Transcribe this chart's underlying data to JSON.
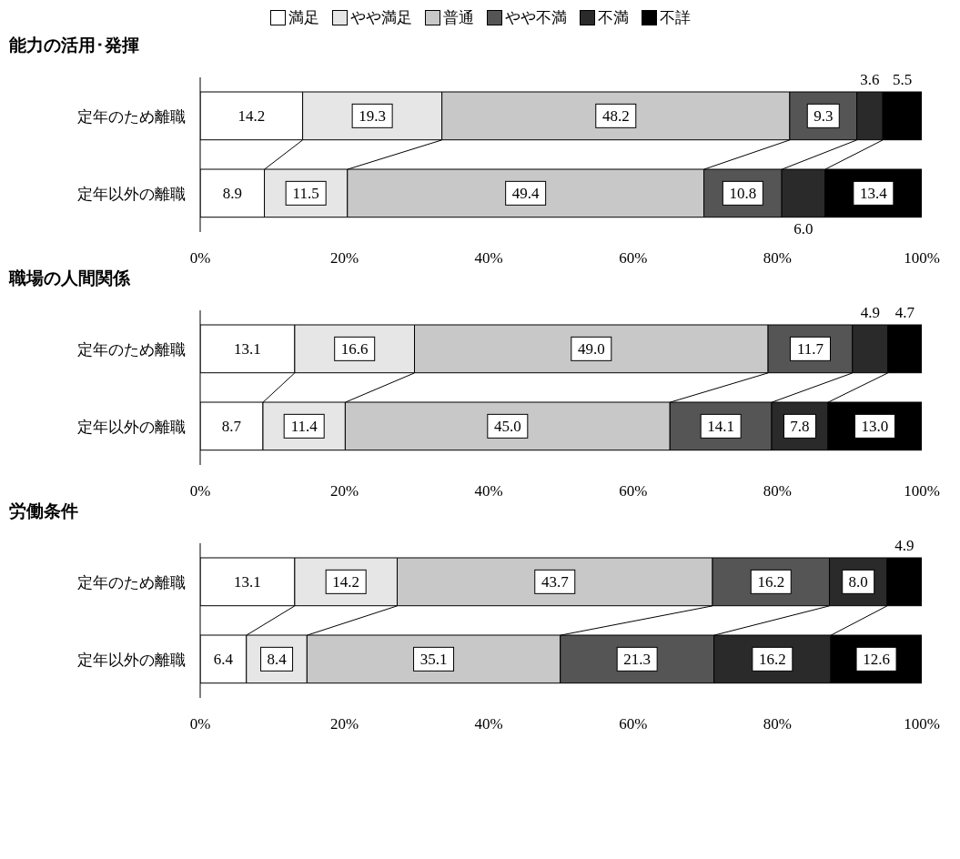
{
  "chart_data": [
    {
      "type": "bar",
      "orientation": "horizontal",
      "stacked": true,
      "title": "能力の活用･発揮",
      "legend": "top",
      "categories": [
        "定年のため離職",
        "定年以外の離職"
      ],
      "xlim": [
        0,
        100
      ],
      "xticks": [
        {
          "value": 0,
          "label": "0%"
        },
        {
          "value": 20,
          "label": "20%"
        },
        {
          "value": 40,
          "label": "40%"
        },
        {
          "value": 60,
          "label": "60%"
        },
        {
          "value": 80,
          "label": "80%"
        },
        {
          "value": 100,
          "label": "100%"
        }
      ],
      "series": [
        {
          "name": "満足",
          "color": "#ffffff",
          "values": [
            14.2,
            8.9
          ],
          "value_labels": [
            "14.2",
            "8.9"
          ]
        },
        {
          "name": "やや満足",
          "color": "#e6e6e6",
          "values": [
            19.3,
            11.5
          ],
          "value_labels": [
            "19.3",
            "11.5"
          ]
        },
        {
          "name": "普通",
          "color": "#c8c8c8",
          "values": [
            48.2,
            49.4
          ],
          "value_labels": [
            "48.2",
            "49.4"
          ]
        },
        {
          "name": "やや不満",
          "color": "#555555",
          "values": [
            9.3,
            10.8
          ],
          "value_labels": [
            "9.3",
            "10.8"
          ]
        },
        {
          "name": "不満",
          "color": "#2a2a2a",
          "values": [
            3.6,
            6.0
          ],
          "value_labels": [
            "3.6",
            "6.0"
          ]
        },
        {
          "name": "不詳",
          "color": "#000000",
          "values": [
            5.5,
            13.4
          ],
          "value_labels": [
            "5.5",
            "13.4"
          ]
        }
      ]
    },
    {
      "type": "bar",
      "orientation": "horizontal",
      "stacked": true,
      "title": "職場の人間関係",
      "categories": [
        "定年のため離職",
        "定年以外の離職"
      ],
      "xlim": [
        0,
        100
      ],
      "xticks": [
        {
          "value": 0,
          "label": "0%"
        },
        {
          "value": 20,
          "label": "20%"
        },
        {
          "value": 40,
          "label": "40%"
        },
        {
          "value": 60,
          "label": "60%"
        },
        {
          "value": 80,
          "label": "80%"
        },
        {
          "value": 100,
          "label": "100%"
        }
      ],
      "series": [
        {
          "color": "#ffffff",
          "values": [
            13.1,
            8.7
          ],
          "value_labels": [
            "13.1",
            "8.7"
          ]
        },
        {
          "color": "#e6e6e6",
          "values": [
            16.6,
            11.4
          ],
          "value_labels": [
            "16.6",
            "11.4"
          ]
        },
        {
          "color": "#c8c8c8",
          "values": [
            49.0,
            45.0
          ],
          "value_labels": [
            "49.0",
            "45.0"
          ]
        },
        {
          "color": "#555555",
          "values": [
            11.7,
            14.1
          ],
          "value_labels": [
            "11.7",
            "14.1"
          ]
        },
        {
          "color": "#2a2a2a",
          "values": [
            4.9,
            7.8
          ],
          "value_labels": [
            "4.9",
            "7.8"
          ]
        },
        {
          "color": "#000000",
          "values": [
            4.7,
            13.0
          ],
          "value_labels": [
            "4.7",
            "13.0"
          ]
        }
      ]
    },
    {
      "type": "bar",
      "orientation": "horizontal",
      "stacked": true,
      "title": "労働条件",
      "categories": [
        "定年のため離職",
        "定年以外の離職"
      ],
      "xlim": [
        0,
        100
      ],
      "xticks": [
        {
          "value": 0,
          "label": "0%"
        },
        {
          "value": 20,
          "label": "20%"
        },
        {
          "value": 40,
          "label": "40%"
        },
        {
          "value": 60,
          "label": "60%"
        },
        {
          "value": 80,
          "label": "80%"
        },
        {
          "value": 100,
          "label": "100%"
        }
      ],
      "series": [
        {
          "color": "#ffffff",
          "values": [
            13.1,
            6.4
          ],
          "value_labels": [
            "13.1",
            "6.4"
          ]
        },
        {
          "color": "#e6e6e6",
          "values": [
            14.2,
            8.4
          ],
          "value_labels": [
            "14.2",
            "8.4"
          ]
        },
        {
          "color": "#c8c8c8",
          "values": [
            43.7,
            35.1
          ],
          "value_labels": [
            "43.7",
            "35.1"
          ]
        },
        {
          "color": "#555555",
          "values": [
            16.2,
            21.3
          ],
          "value_labels": [
            "16.2",
            "21.3"
          ]
        },
        {
          "color": "#2a2a2a",
          "values": [
            8.0,
            16.2
          ],
          "value_labels": [
            "8.0",
            "16.2"
          ]
        },
        {
          "color": "#000000",
          "values": [
            4.9,
            12.6
          ],
          "value_labels": [
            "4.9",
            "12.6"
          ]
        }
      ]
    }
  ]
}
